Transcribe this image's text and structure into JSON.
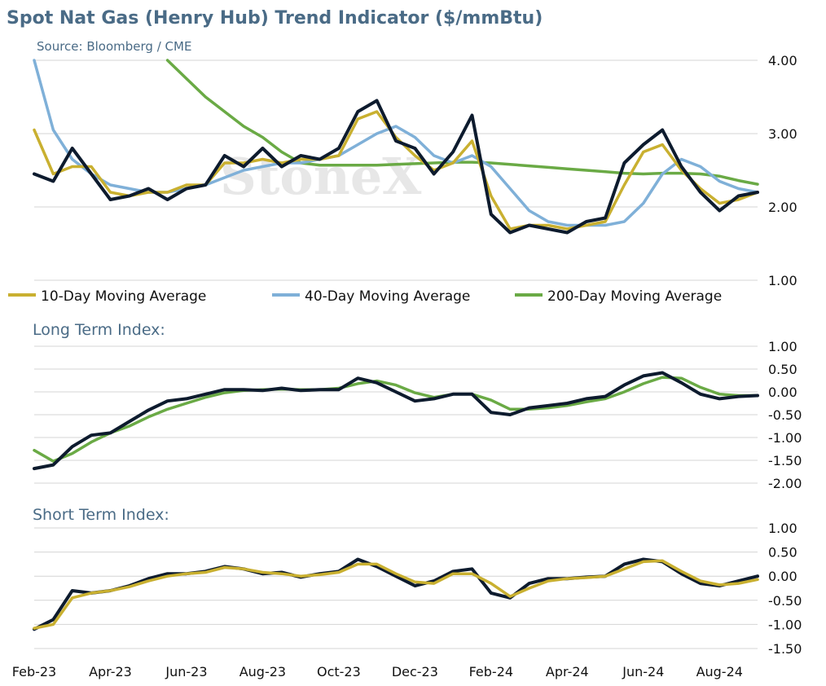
{
  "title": "Spot Nat Gas (Henry Hub) Trend Indicator ($/mmBtu)",
  "source": "Source: Bloomberg / CME",
  "watermark": "StoneX",
  "colors": {
    "spot": "#0d1b2e",
    "ma10": "#c9b030",
    "ma40": "#7fb0d8",
    "ma200": "#6aaa45",
    "title": "#4a6b86",
    "grid": "#d4d4d4"
  },
  "x_axis_labels": [
    "Feb-23",
    "Apr-23",
    "Jun-23",
    "Aug-23",
    "Oct-23",
    "Dec-23",
    "Feb-24",
    "Apr-24",
    "Jun-24",
    "Aug-24"
  ],
  "chart_data": [
    {
      "type": "line",
      "title": "Spot Nat Gas (Henry Hub) Trend Indicator ($/mmBtu)",
      "ylim": [
        1.0,
        4.0
      ],
      "yticks": [
        "1.00",
        "2.00",
        "3.00",
        "4.00"
      ],
      "y_axis_side": "right",
      "grid": true,
      "legend_position": "bottom",
      "x": [
        "2023-02-01",
        "2023-02-15",
        "2023-03-01",
        "2023-03-15",
        "2023-04-01",
        "2023-04-15",
        "2023-05-01",
        "2023-05-15",
        "2023-06-01",
        "2023-06-15",
        "2023-07-01",
        "2023-07-15",
        "2023-08-01",
        "2023-08-15",
        "2023-09-01",
        "2023-09-15",
        "2023-10-01",
        "2023-10-15",
        "2023-11-01",
        "2023-11-15",
        "2023-12-01",
        "2023-12-15",
        "2024-01-01",
        "2024-01-15",
        "2024-02-01",
        "2024-02-15",
        "2024-03-01",
        "2024-03-15",
        "2024-04-01",
        "2024-04-15",
        "2024-05-01",
        "2024-05-15",
        "2024-06-01",
        "2024-06-15",
        "2024-07-01",
        "2024-07-15",
        "2024-08-01",
        "2024-08-15",
        "2024-09-01"
      ],
      "series": [
        {
          "name": "Spot",
          "values": [
            2.45,
            2.35,
            2.8,
            2.45,
            2.1,
            2.15,
            2.25,
            2.1,
            2.25,
            2.3,
            2.7,
            2.55,
            2.8,
            2.55,
            2.7,
            2.65,
            2.8,
            3.3,
            3.45,
            2.9,
            2.8,
            2.45,
            2.75,
            3.25,
            1.9,
            1.65,
            1.75,
            1.7,
            1.65,
            1.8,
            1.85,
            2.6,
            2.85,
            3.05,
            2.55,
            2.2,
            1.95,
            2.15,
            2.2
          ]
        },
        {
          "name": "10-Day Moving Average",
          "values": [
            3.05,
            2.45,
            2.55,
            2.55,
            2.2,
            2.15,
            2.2,
            2.2,
            2.3,
            2.3,
            2.6,
            2.6,
            2.65,
            2.6,
            2.65,
            2.65,
            2.7,
            3.2,
            3.3,
            2.95,
            2.7,
            2.5,
            2.6,
            2.9,
            2.15,
            1.7,
            1.75,
            1.75,
            1.7,
            1.75,
            1.8,
            2.3,
            2.75,
            2.85,
            2.5,
            2.25,
            2.05,
            2.1,
            2.2
          ]
        },
        {
          "name": "40-Day Moving Average",
          "values": [
            4.0,
            3.05,
            2.65,
            2.45,
            2.3,
            2.25,
            2.2,
            2.2,
            2.25,
            2.3,
            2.4,
            2.5,
            2.55,
            2.6,
            2.6,
            2.65,
            2.7,
            2.85,
            3.0,
            3.1,
            2.95,
            2.7,
            2.6,
            2.7,
            2.55,
            2.25,
            1.95,
            1.8,
            1.75,
            1.75,
            1.75,
            1.8,
            2.05,
            2.45,
            2.65,
            2.55,
            2.35,
            2.25,
            2.2
          ]
        },
        {
          "name": "200-Day Moving Average",
          "values": [
            null,
            null,
            null,
            null,
            null,
            null,
            null,
            4.0,
            3.75,
            3.5,
            3.3,
            3.1,
            2.95,
            2.75,
            2.6,
            2.57,
            2.57,
            2.57,
            2.57,
            2.58,
            2.59,
            2.6,
            2.61,
            2.61,
            2.6,
            2.58,
            2.56,
            2.54,
            2.52,
            2.5,
            2.48,
            2.46,
            2.45,
            2.46,
            2.46,
            2.45,
            2.42,
            2.36,
            2.31
          ]
        }
      ]
    },
    {
      "type": "line",
      "title": "Long Term Index:",
      "ylim": [
        -2.0,
        1.0
      ],
      "yticks": [
        "1.00",
        "0.50",
        "0.00",
        "-0.50",
        "-1.00",
        "-1.50",
        "-2.00"
      ],
      "y_axis_side": "right",
      "grid": true,
      "x": [
        "2023-02-01",
        "2023-02-15",
        "2023-03-01",
        "2023-03-15",
        "2023-04-01",
        "2023-04-15",
        "2023-05-01",
        "2023-05-15",
        "2023-06-01",
        "2023-06-15",
        "2023-07-01",
        "2023-07-15",
        "2023-08-01",
        "2023-08-15",
        "2023-09-01",
        "2023-09-15",
        "2023-10-01",
        "2023-10-15",
        "2023-11-01",
        "2023-11-15",
        "2023-12-01",
        "2023-12-15",
        "2024-01-01",
        "2024-01-15",
        "2024-02-01",
        "2024-02-15",
        "2024-03-01",
        "2024-03-15",
        "2024-04-01",
        "2024-04-15",
        "2024-05-01",
        "2024-05-15",
        "2024-06-01",
        "2024-06-15",
        "2024-07-01",
        "2024-07-15",
        "2024-08-01",
        "2024-08-15",
        "2024-09-01"
      ],
      "series": [
        {
          "name": "Index",
          "color": "#0d1b2e",
          "values": [
            -1.68,
            -1.6,
            -1.2,
            -0.95,
            -0.9,
            -0.65,
            -0.4,
            -0.2,
            -0.15,
            -0.05,
            0.05,
            0.05,
            0.03,
            0.08,
            0.03,
            0.05,
            0.05,
            0.3,
            0.2,
            0.0,
            -0.2,
            -0.15,
            -0.05,
            -0.05,
            -0.45,
            -0.5,
            -0.35,
            -0.3,
            -0.25,
            -0.15,
            -0.1,
            0.15,
            0.35,
            0.42,
            0.2,
            -0.05,
            -0.15,
            -0.1,
            -0.08
          ]
        },
        {
          "name": "Moving Average",
          "color": "#6aaa45",
          "values": [
            -1.28,
            -1.52,
            -1.35,
            -1.1,
            -0.9,
            -0.75,
            -0.55,
            -0.38,
            -0.25,
            -0.12,
            -0.02,
            0.03,
            0.05,
            0.06,
            0.05,
            0.05,
            0.08,
            0.18,
            0.24,
            0.15,
            -0.02,
            -0.12,
            -0.05,
            -0.05,
            -0.18,
            -0.38,
            -0.38,
            -0.35,
            -0.3,
            -0.22,
            -0.15,
            0.0,
            0.18,
            0.32,
            0.3,
            0.1,
            -0.05,
            -0.08,
            -0.08
          ]
        }
      ]
    },
    {
      "type": "line",
      "title": "Short Term Index:",
      "ylim": [
        -1.5,
        1.0
      ],
      "yticks": [
        "1.00",
        "0.50",
        "0.00",
        "-0.50",
        "-1.00",
        "-1.50"
      ],
      "y_axis_side": "right",
      "grid": true,
      "x": [
        "2023-02-01",
        "2023-02-15",
        "2023-03-01",
        "2023-03-15",
        "2023-04-01",
        "2023-04-15",
        "2023-05-01",
        "2023-05-15",
        "2023-06-01",
        "2023-06-15",
        "2023-07-01",
        "2023-07-15",
        "2023-08-01",
        "2023-08-15",
        "2023-09-01",
        "2023-09-15",
        "2023-10-01",
        "2023-10-15",
        "2023-11-01",
        "2023-11-15",
        "2023-12-01",
        "2023-12-15",
        "2024-01-01",
        "2024-01-15",
        "2024-02-01",
        "2024-02-15",
        "2024-03-01",
        "2024-03-15",
        "2024-04-01",
        "2024-04-15",
        "2024-05-01",
        "2024-05-15",
        "2024-06-01",
        "2024-06-15",
        "2024-07-01",
        "2024-07-15",
        "2024-08-01",
        "2024-08-15",
        "2024-09-01"
      ],
      "series": [
        {
          "name": "Index",
          "color": "#0d1b2e",
          "values": [
            -1.1,
            -0.9,
            -0.3,
            -0.35,
            -0.3,
            -0.2,
            -0.05,
            0.05,
            0.05,
            0.1,
            0.2,
            0.15,
            0.05,
            0.08,
            -0.02,
            0.05,
            0.1,
            0.35,
            0.2,
            0.0,
            -0.2,
            -0.1,
            0.1,
            0.15,
            -0.35,
            -0.45,
            -0.15,
            -0.05,
            -0.05,
            -0.02,
            0.0,
            0.25,
            0.35,
            0.3,
            0.05,
            -0.15,
            -0.2,
            -0.1,
            0.0
          ]
        },
        {
          "name": "Moving Average",
          "color": "#c9b030",
          "values": [
            -1.08,
            -1.0,
            -0.45,
            -0.35,
            -0.3,
            -0.22,
            -0.1,
            0.0,
            0.05,
            0.08,
            0.18,
            0.15,
            0.08,
            0.05,
            0.0,
            0.03,
            0.08,
            0.25,
            0.25,
            0.05,
            -0.12,
            -0.15,
            0.05,
            0.05,
            -0.15,
            -0.42,
            -0.25,
            -0.1,
            -0.05,
            -0.03,
            0.0,
            0.15,
            0.3,
            0.32,
            0.1,
            -0.1,
            -0.18,
            -0.15,
            -0.07
          ]
        }
      ]
    }
  ]
}
